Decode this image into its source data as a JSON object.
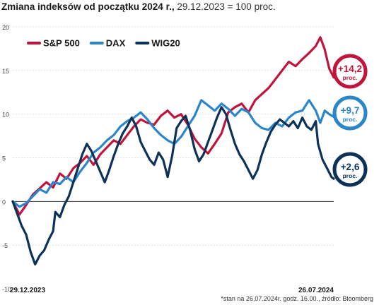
{
  "title": "Zmiana indeksów od początku 2024 r.,",
  "subtitle": "29.12.2023 = 100 proc.",
  "footnote": "*stan na 26,07.2024r. godz. 16.00., źródło: Bloomberg",
  "chart_data": {
    "type": "line",
    "title": "Zmiana indeksów od początku 2024 r.,",
    "subtitle": "29.12.2023 = 100 proc.",
    "x_labels": [
      "29.12.2023",
      "26.07.2024"
    ],
    "ylim": [
      -10,
      20
    ],
    "yticks": [
      -10,
      -5,
      0,
      5,
      10,
      15,
      20
    ],
    "grid": "horizontal",
    "legend_position": "top-left",
    "n_points": 144,
    "series": [
      {
        "name": "S&P 500",
        "color": "#c0143c",
        "end_label": "+14,2",
        "end_unit": "proc.",
        "values": [
          [
            0,
            0.0
          ],
          [
            3,
            -1.5
          ],
          [
            6,
            -0.4
          ],
          [
            9,
            0.8
          ],
          [
            12,
            1.5
          ],
          [
            15,
            2.2
          ],
          [
            18,
            1.6
          ],
          [
            21,
            3.2
          ],
          [
            24,
            2.6
          ],
          [
            27,
            3.8
          ],
          [
            30,
            4.4
          ],
          [
            33,
            5.2
          ],
          [
            36,
            4.2
          ],
          [
            39,
            5.4
          ],
          [
            42,
            6.2
          ],
          [
            45,
            7.0
          ],
          [
            48,
            6.6
          ],
          [
            51,
            7.6
          ],
          [
            54,
            8.6
          ],
          [
            57,
            9.4
          ],
          [
            60,
            9.0
          ],
          [
            63,
            8.8
          ],
          [
            66,
            9.8
          ],
          [
            69,
            10.4
          ],
          [
            72,
            9.6
          ],
          [
            75,
            10.0
          ],
          [
            78,
            8.8
          ],
          [
            81,
            7.2
          ],
          [
            84,
            6.2
          ],
          [
            87,
            5.5
          ],
          [
            90,
            6.6
          ],
          [
            93,
            7.8
          ],
          [
            96,
            10.2
          ],
          [
            99,
            10.8
          ],
          [
            102,
            11.2
          ],
          [
            105,
            10.2
          ],
          [
            108,
            11.6
          ],
          [
            111,
            12.3
          ],
          [
            114,
            13.0
          ],
          [
            117,
            14.0
          ],
          [
            120,
            15.0
          ],
          [
            123,
            16.0
          ],
          [
            126,
            15.5
          ],
          [
            129,
            16.3
          ],
          [
            132,
            17.0
          ],
          [
            135,
            17.8
          ],
          [
            137,
            18.8
          ],
          [
            139,
            17.4
          ],
          [
            141,
            15.2
          ],
          [
            143,
            14.2
          ]
        ]
      },
      {
        "name": "DAX",
        "color": "#2a86c8",
        "end_label": "+9,7",
        "end_unit": "proc.",
        "values": [
          [
            0,
            0.0
          ],
          [
            3,
            -0.6
          ],
          [
            6,
            -0.2
          ],
          [
            9,
            0.6
          ],
          [
            12,
            1.4
          ],
          [
            15,
            1.0
          ],
          [
            18,
            2.2
          ],
          [
            21,
            2.0
          ],
          [
            24,
            2.8
          ],
          [
            27,
            2.2
          ],
          [
            30,
            3.4
          ],
          [
            33,
            4.4
          ],
          [
            36,
            5.6
          ],
          [
            39,
            6.2
          ],
          [
            42,
            7.0
          ],
          [
            45,
            7.6
          ],
          [
            48,
            8.6
          ],
          [
            51,
            9.2
          ],
          [
            54,
            9.6
          ],
          [
            57,
            10.2
          ],
          [
            60,
            9.4
          ],
          [
            63,
            8.4
          ],
          [
            66,
            7.6
          ],
          [
            69,
            7.0
          ],
          [
            72,
            6.6
          ],
          [
            75,
            7.4
          ],
          [
            78,
            8.6
          ],
          [
            81,
            9.8
          ],
          [
            84,
            11.6
          ],
          [
            87,
            11.0
          ],
          [
            90,
            10.4
          ],
          [
            93,
            11.2
          ],
          [
            96,
            10.6
          ],
          [
            99,
            9.8
          ],
          [
            102,
            10.6
          ],
          [
            105,
            10.2
          ],
          [
            108,
            9.0
          ],
          [
            111,
            8.4
          ],
          [
            114,
            8.2
          ],
          [
            117,
            9.0
          ],
          [
            120,
            8.6
          ],
          [
            123,
            9.6
          ],
          [
            126,
            10.2
          ],
          [
            129,
            10.4
          ],
          [
            132,
            11.6
          ],
          [
            135,
            10.4
          ],
          [
            137,
            9.0
          ],
          [
            139,
            10.4
          ],
          [
            141,
            10.0
          ],
          [
            143,
            9.7
          ]
        ]
      },
      {
        "name": "WIG20",
        "color": "#0d3259",
        "end_label": "+2,6",
        "end_unit": "proc.",
        "values": [
          [
            0,
            0.0
          ],
          [
            2,
            -1.4
          ],
          [
            4,
            -2.8
          ],
          [
            6,
            -3.8
          ],
          [
            8,
            -5.8
          ],
          [
            10,
            -7.2
          ],
          [
            12,
            -6.2
          ],
          [
            14,
            -5.6
          ],
          [
            16,
            -4.4
          ],
          [
            18,
            -3.4
          ],
          [
            19,
            -1.2
          ],
          [
            21,
            -1.8
          ],
          [
            23,
            -0.4
          ],
          [
            25,
            0.6
          ],
          [
            27,
            2.2
          ],
          [
            29,
            3.8
          ],
          [
            31,
            5.4
          ],
          [
            33,
            6.6
          ],
          [
            35,
            5.8
          ],
          [
            37,
            4.6
          ],
          [
            39,
            3.4
          ],
          [
            41,
            2.2
          ],
          [
            43,
            3.6
          ],
          [
            45,
            5.2
          ],
          [
            47,
            6.6
          ],
          [
            49,
            7.8
          ],
          [
            51,
            8.6
          ],
          [
            53,
            9.6
          ],
          [
            55,
            8.6
          ],
          [
            57,
            6.8
          ],
          [
            59,
            5.8
          ],
          [
            61,
            4.8
          ],
          [
            63,
            4.2
          ],
          [
            65,
            5.6
          ],
          [
            67,
            4.8
          ],
          [
            69,
            2.8
          ],
          [
            71,
            5.2
          ],
          [
            73,
            8.4
          ],
          [
            75,
            9.2
          ],
          [
            77,
            9.8
          ],
          [
            79,
            8.2
          ],
          [
            81,
            6.0
          ],
          [
            83,
            4.6
          ],
          [
            85,
            5.4
          ],
          [
            87,
            6.8
          ],
          [
            89,
            8.2
          ],
          [
            91,
            9.6
          ],
          [
            93,
            10.8
          ],
          [
            95,
            10.0
          ],
          [
            97,
            8.2
          ],
          [
            99,
            6.6
          ],
          [
            101,
            5.4
          ],
          [
            103,
            4.6
          ],
          [
            105,
            3.6
          ],
          [
            107,
            2.6
          ],
          [
            109,
            3.6
          ],
          [
            111,
            5.4
          ],
          [
            113,
            6.8
          ],
          [
            115,
            8.0
          ],
          [
            117,
            8.8
          ],
          [
            119,
            9.4
          ],
          [
            121,
            9.0
          ],
          [
            123,
            8.6
          ],
          [
            125,
            9.2
          ],
          [
            127,
            8.4
          ],
          [
            129,
            9.6
          ],
          [
            131,
            8.6
          ],
          [
            133,
            8.2
          ],
          [
            135,
            9.2
          ],
          [
            136,
            6.6
          ],
          [
            138,
            4.8
          ],
          [
            140,
            3.8
          ],
          [
            142,
            2.8
          ],
          [
            143,
            2.6
          ]
        ]
      }
    ]
  }
}
